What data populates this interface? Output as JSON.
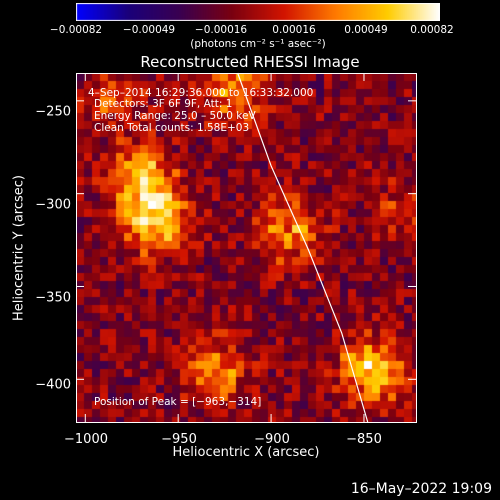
{
  "chart_data": {
    "type": "heatmap",
    "title": "Reconstructed RHESSI Image",
    "xlabel": "Heliocentric X (arcsec)",
    "ylabel": "Heliocentric Y (arcsec)",
    "xlim": [
      -1005,
      -822
    ],
    "ylim": [
      -423,
      -235
    ],
    "x_ticks": [
      -1000,
      -950,
      -900,
      -850
    ],
    "x_tick_labels": [
      "−1000",
      "−950",
      "−900",
      "−850"
    ],
    "y_ticks": [
      -250,
      -300,
      -350,
      -400
    ],
    "y_tick_labels": [
      "−250",
      "−300",
      "−350",
      "−400"
    ],
    "colorbar": {
      "range": [
        -0.00082,
        0.00082
      ],
      "ticks": [
        -0.00082,
        -0.00049,
        -0.00016,
        0.00016,
        0.00049,
        0.00082
      ],
      "tick_labels": [
        "−0.00082",
        "−0.00049",
        "−0.00016",
        "0.00016",
        "0.00049",
        "0.00082"
      ],
      "units": "(photons cm⁻² s⁻¹ asec⁻²)",
      "colormap": [
        "#0000ff",
        "#1a007a",
        "#3a0050",
        "#7a0010",
        "#d21400",
        "#ff7a00",
        "#ffcc00",
        "#ffffff"
      ]
    },
    "annotations": {
      "time": "4–Sep–2014 16:29:36.000 to 16:33:32.000",
      "detectors": "Detectors: 3F 6F 9F, Att: 1",
      "energy": "Energy Range: 25.0 – 50.0 keV",
      "method": "Clean     Total counts: 1.58E+03",
      "peak": "Position of Peak = [−963,−314]"
    },
    "limb": {
      "points": [
        [
          -918,
          -235
        ],
        [
          -900,
          -285
        ],
        [
          -880,
          -330
        ],
        [
          -862,
          -375
        ],
        [
          -848,
          -423
        ]
      ],
      "color": "#ffffff"
    },
    "sources": [
      {
        "x": -963,
        "y": -314,
        "peak": 0.00082
      },
      {
        "x": -970,
        "y": -290,
        "peak": 0.00055
      },
      {
        "x": -890,
        "y": -320,
        "peak": 0.0005
      },
      {
        "x": -845,
        "y": -395,
        "peak": 0.0007
      },
      {
        "x": -930,
        "y": -395,
        "peak": 0.0005
      },
      {
        "x": -920,
        "y": -245,
        "peak": 0.0005
      },
      {
        "x": -830,
        "y": -310,
        "peak": 0.0003
      },
      {
        "x": -985,
        "y": -250,
        "peak": 0.0003
      }
    ]
  },
  "footer": {
    "timestamp": "16–May–2022 19:09"
  }
}
